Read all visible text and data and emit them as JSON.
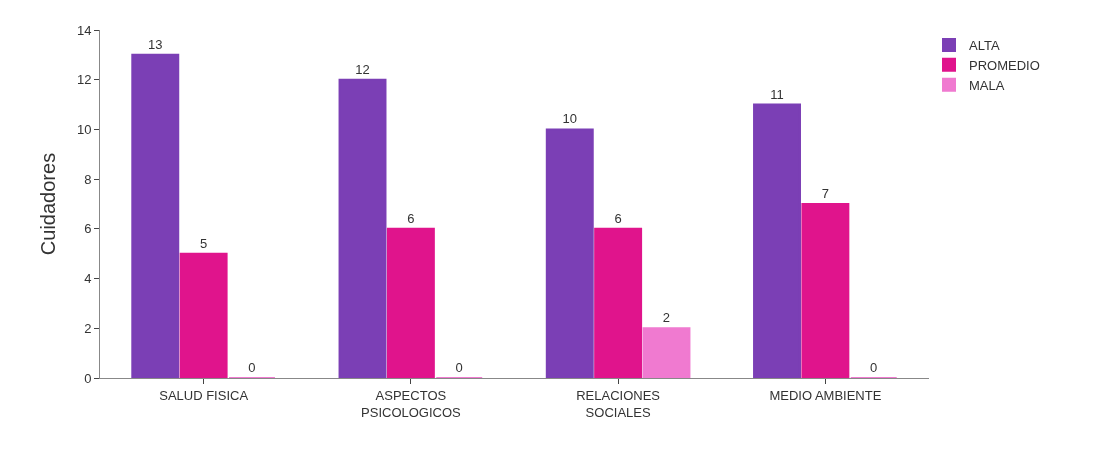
{
  "chart_data": {
    "type": "bar",
    "ylabel": "Cuidadores",
    "categories": [
      "SALUD FISICA",
      "ASPECTOS PSICOLOGICOS",
      "RELACIONES SOCIALES",
      "MEDIO AMBIENTE"
    ],
    "series": [
      {
        "name": "ALTA",
        "color": "#7b3fb5",
        "values": [
          13,
          12,
          10,
          11
        ]
      },
      {
        "name": "PROMEDIO",
        "color": "#e0148c",
        "values": [
          5,
          6,
          6,
          7
        ]
      },
      {
        "name": "MALA",
        "color": "#f07ad0",
        "values": [
          0,
          0,
          2,
          0
        ]
      }
    ],
    "ylim": [
      0,
      14
    ],
    "yticks": [
      0,
      2,
      4,
      6,
      8,
      10,
      12,
      14
    ],
    "data_labels": true,
    "legend": "top right"
  }
}
